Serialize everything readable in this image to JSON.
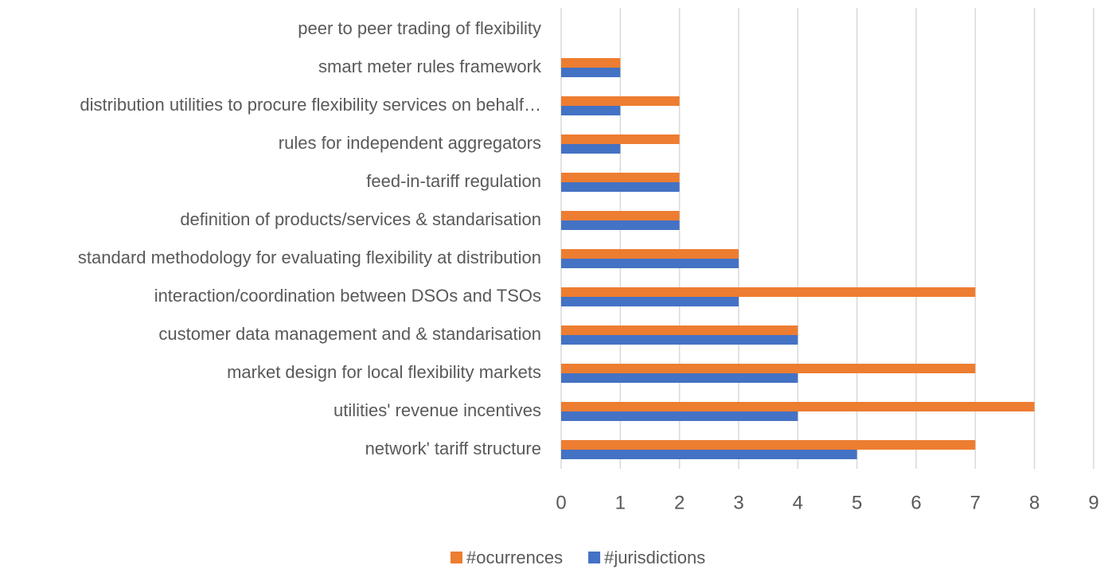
{
  "chart_data": {
    "type": "bar",
    "orientation": "horizontal",
    "categories": [
      "peer to peer trading of flexibility",
      "smart meter rules framework",
      "distribution utilities to procure flexibility services on behalf…",
      "rules for independent aggregators",
      "feed-in-tariff regulation",
      "definition of products/services & standarisation",
      "standard methodology for evaluating flexibility at distribution",
      "interaction/coordination between DSOs and TSOs",
      "customer data management and & standarisation",
      "market design for local flexibility markets",
      "utilities' revenue incentives",
      "network' tariff structure"
    ],
    "series": [
      {
        "name": "#ocurrences",
        "color": "#ed7d31",
        "values": [
          0,
          1,
          2,
          2,
          2,
          2,
          3,
          7,
          4,
          7,
          8,
          7
        ]
      },
      {
        "name": "#jurisdictions",
        "color": "#4472c4",
        "values": [
          0,
          1,
          1,
          1,
          2,
          2,
          3,
          3,
          4,
          4,
          4,
          5
        ]
      }
    ],
    "xlim": [
      0,
      9
    ],
    "xticks": [
      0,
      1,
      2,
      3,
      4,
      5,
      6,
      7,
      8,
      9
    ],
    "grid": true,
    "legend": "bottom"
  }
}
